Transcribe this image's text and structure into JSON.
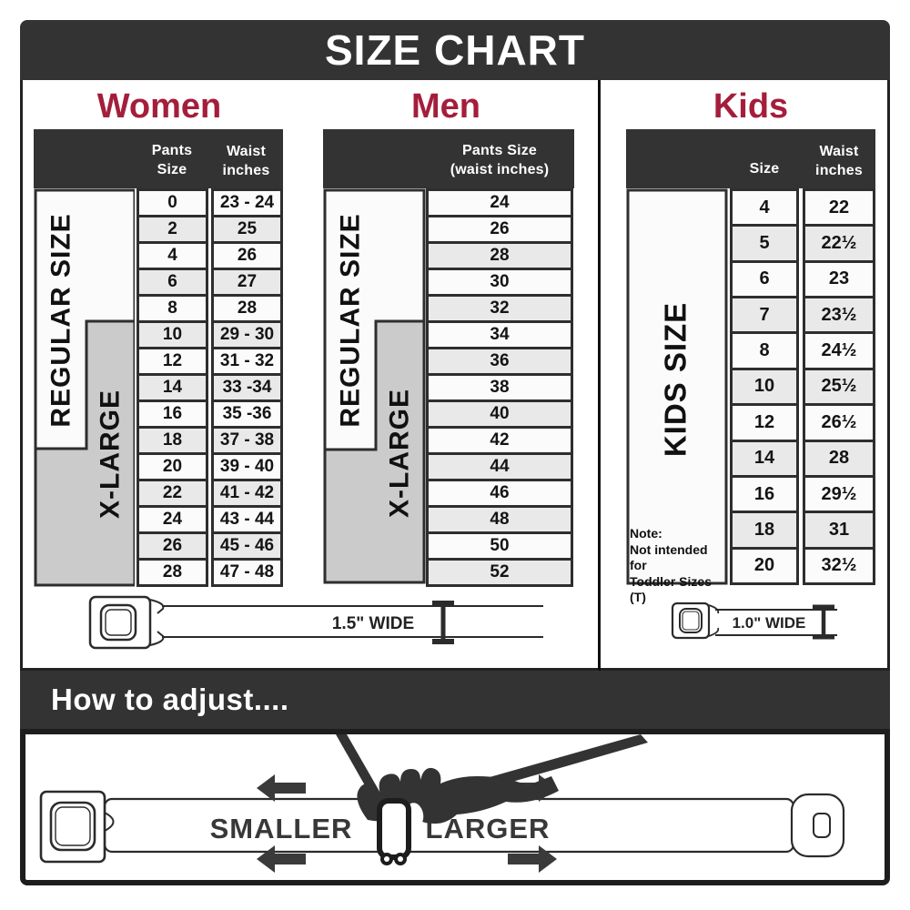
{
  "title": "SIZE CHART",
  "colors": {
    "band_dark": "#333333",
    "heading_crimson": "#A41E3B",
    "row_light": "#FBFBFB",
    "row_shaded": "#E9E9E9",
    "xlarge_gray": "#CBCBCB"
  },
  "women": {
    "heading": "Women",
    "pants_size_header": "Pants Size",
    "waist_header_line1": "Waist",
    "waist_header_line2": "inches",
    "regular_label": "REGULAR SIZE",
    "xlarge_label": "X-LARGE",
    "rows": [
      {
        "pants_size": "0",
        "waist_inches": "23 - 24"
      },
      {
        "pants_size": "2",
        "waist_inches": "25"
      },
      {
        "pants_size": "4",
        "waist_inches": "26"
      },
      {
        "pants_size": "6",
        "waist_inches": "27"
      },
      {
        "pants_size": "8",
        "waist_inches": "28"
      },
      {
        "pants_size": "10",
        "waist_inches": "29 - 30"
      },
      {
        "pants_size": "12",
        "waist_inches": "31 - 32"
      },
      {
        "pants_size": "14",
        "waist_inches": "33 -34"
      },
      {
        "pants_size": "16",
        "waist_inches": "35 -36"
      },
      {
        "pants_size": "18",
        "waist_inches": "37 - 38"
      },
      {
        "pants_size": "20",
        "waist_inches": "39 - 40"
      },
      {
        "pants_size": "22",
        "waist_inches": "41 - 42"
      },
      {
        "pants_size": "24",
        "waist_inches": "43 - 44"
      },
      {
        "pants_size": "26",
        "waist_inches": "45 - 46"
      },
      {
        "pants_size": "28",
        "waist_inches": "47 - 48"
      }
    ]
  },
  "men": {
    "heading": "Men",
    "header_line1": "Pants Size",
    "header_line2": "(waist inches)",
    "regular_label": "REGULAR SIZE",
    "xlarge_label": "X-LARGE",
    "rows": [
      "24",
      "26",
      "28",
      "30",
      "32",
      "34",
      "36",
      "38",
      "40",
      "42",
      "44",
      "46",
      "48",
      "50",
      "52"
    ]
  },
  "kids": {
    "heading": "Kids",
    "size_header": "Size",
    "waist_header_line1": "Waist",
    "waist_header_line2": "inches",
    "side_label": "KIDS SIZE",
    "note_line1": "Note:",
    "note_line2": "Not intended for",
    "note_line3": "Toddler Sizes (T)",
    "rows": [
      {
        "size": "4",
        "waist_inches": "22"
      },
      {
        "size": "5",
        "waist_inches": "22½"
      },
      {
        "size": "6",
        "waist_inches": "23"
      },
      {
        "size": "7",
        "waist_inches": "23½"
      },
      {
        "size": "8",
        "waist_inches": "24½"
      },
      {
        "size": "10",
        "waist_inches": "25½"
      },
      {
        "size": "12",
        "waist_inches": "26½"
      },
      {
        "size": "14",
        "waist_inches": "28"
      },
      {
        "size": "16",
        "waist_inches": "29½"
      },
      {
        "size": "18",
        "waist_inches": "31"
      },
      {
        "size": "20",
        "waist_inches": "32½"
      }
    ]
  },
  "belts": {
    "adult_width_label": "1.5\" WIDE",
    "kids_width_label": "1.0\" WIDE"
  },
  "adjust": {
    "heading": "How to adjust....",
    "smaller_label": "SMALLER",
    "larger_label": "LARGER"
  }
}
